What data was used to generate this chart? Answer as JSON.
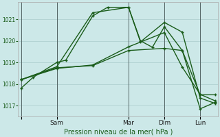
{
  "xlabel": "Pression niveau de la mer( hPa )",
  "background_color": "#cce8e8",
  "grid_color": "#aacccc",
  "line_color": "#1a5c1a",
  "ylim": [
    1016.5,
    1021.8
  ],
  "xlim": [
    -2,
    132
  ],
  "x_ticks": [
    0,
    24,
    72,
    96,
    120
  ],
  "x_tick_labels": [
    "",
    "Sam",
    "Mar",
    "Dim",
    "Lun"
  ],
  "y_ticks": [
    1017,
    1018,
    1019,
    1020,
    1021
  ],
  "vert_lines": [
    0,
    24,
    72,
    96,
    120
  ],
  "series": [
    {
      "x": [
        0,
        8,
        24,
        30,
        48,
        58,
        72,
        80,
        88,
        96,
        108,
        120,
        130
      ],
      "y": [
        1017.8,
        1018.3,
        1019.0,
        1019.1,
        1021.15,
        1021.55,
        1021.55,
        1020.0,
        1019.7,
        1020.65,
        1019.55,
        1017.5,
        1017.5
      ],
      "color": "#1a5c1a",
      "lw": 1.0,
      "marker": "+"
    },
    {
      "x": [
        0,
        24,
        48,
        72,
        80,
        96,
        108,
        120,
        130
      ],
      "y": [
        1018.2,
        1018.8,
        1021.3,
        1021.55,
        1019.95,
        1020.85,
        1020.4,
        1017.35,
        1017.1
      ],
      "color": "#1a5c1a",
      "lw": 1.0,
      "marker": "+"
    },
    {
      "x": [
        0,
        24,
        48,
        72,
        96,
        108,
        120,
        130
      ],
      "y": [
        1018.2,
        1018.75,
        1018.85,
        1019.55,
        1019.65,
        1019.55,
        1016.85,
        1017.15
      ],
      "color": "#1a5c1a",
      "lw": 1.0,
      "marker": "+"
    },
    {
      "x": [
        0,
        24,
        48,
        72,
        96,
        108,
        120,
        130
      ],
      "y": [
        1018.2,
        1018.72,
        1018.88,
        1019.72,
        1020.38,
        1018.78,
        1017.52,
        1017.22
      ],
      "color": "#1a5c1a",
      "lw": 1.0,
      "marker": "+"
    }
  ]
}
